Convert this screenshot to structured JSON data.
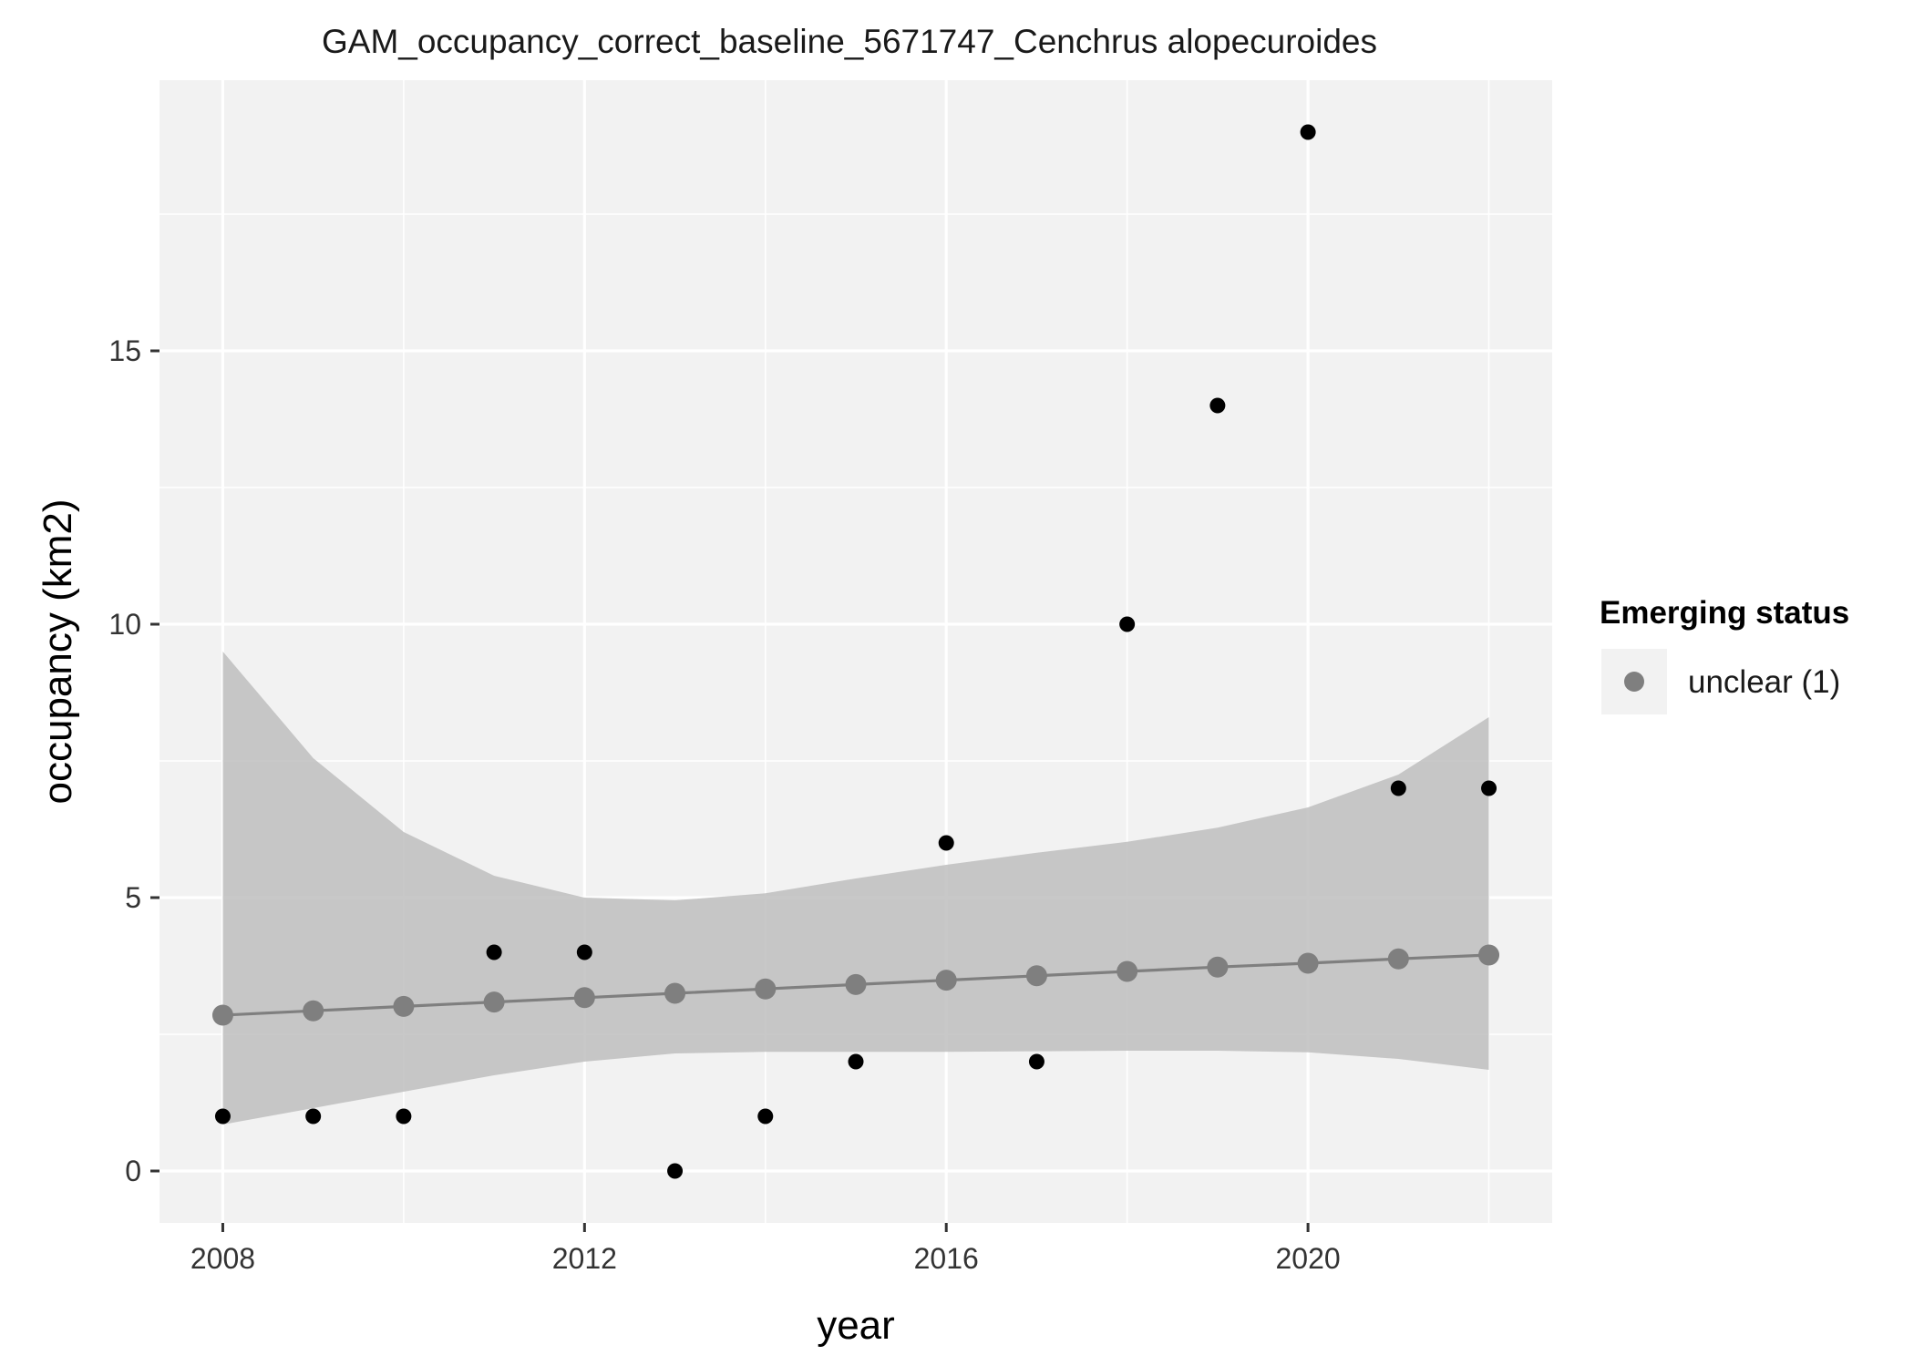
{
  "chart_data": {
    "type": "scatter",
    "title": "GAM_occupancy_correct_baseline_5671747_Cenchrus alopecuroides",
    "xlabel": "year",
    "ylabel": "occupancy (km2)",
    "xlim": [
      2007.3,
      2022.7
    ],
    "ylim": [
      -0.95,
      19.95
    ],
    "x_ticks": [
      2008,
      2012,
      2016,
      2020
    ],
    "y_ticks": [
      0,
      5,
      10,
      15
    ],
    "x_minor_ticks": [
      2010,
      2014,
      2018,
      2022
    ],
    "y_minor_ticks": [
      2.5,
      7.5,
      12.5,
      17.5
    ],
    "grid": true,
    "legend": {
      "title": "Emerging status",
      "position": "right",
      "entries": [
        {
          "label": "unclear (1)",
          "color": "#7f7f7f"
        }
      ]
    },
    "observed": {
      "color": "#000000",
      "x": [
        2008,
        2009,
        2010,
        2011,
        2012,
        2013,
        2014,
        2015,
        2016,
        2017,
        2018,
        2019,
        2020,
        2021,
        2022
      ],
      "y": [
        1,
        1,
        1,
        4,
        4,
        0,
        1,
        2,
        6,
        2,
        10,
        14,
        19,
        7,
        7
      ]
    },
    "fitted": {
      "name": "unclear (1)",
      "color": "#7f7f7f",
      "x": [
        2008,
        2009,
        2010,
        2011,
        2012,
        2013,
        2014,
        2015,
        2016,
        2017,
        2018,
        2019,
        2020,
        2021,
        2022
      ],
      "y": [
        2.85,
        2.93,
        3.01,
        3.09,
        3.17,
        3.25,
        3.33,
        3.41,
        3.49,
        3.57,
        3.65,
        3.73,
        3.8,
        3.88,
        3.95
      ]
    },
    "ribbon": {
      "color": "#bebebe",
      "x": [
        2008,
        2009,
        2010,
        2011,
        2012,
        2013,
        2014,
        2015,
        2016,
        2017,
        2018,
        2019,
        2020,
        2021,
        2022
      ],
      "lower": [
        0.85,
        1.15,
        1.45,
        1.75,
        2.0,
        2.15,
        2.18,
        2.18,
        2.18,
        2.19,
        2.2,
        2.2,
        2.17,
        2.05,
        1.85
      ],
      "upper": [
        9.5,
        7.55,
        6.2,
        5.4,
        5.0,
        4.95,
        5.08,
        5.35,
        5.6,
        5.82,
        6.02,
        6.28,
        6.65,
        7.25,
        8.3
      ]
    },
    "colors": {
      "panel": "#f2f2f2",
      "grid": "#ffffff",
      "ribbon": "#bebebe",
      "line": "#7f7f7f",
      "observed": "#000000"
    }
  }
}
